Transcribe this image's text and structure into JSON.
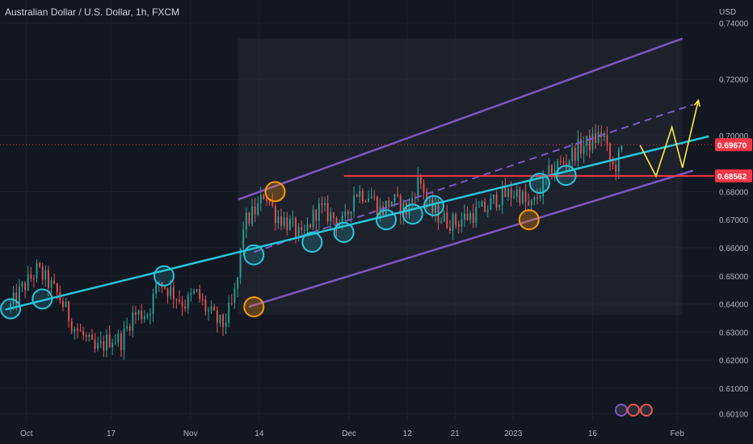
{
  "header": {
    "title": "Australian Dollar / U.S. Dollar, 1h, FXCM",
    "currency": "USD"
  },
  "colors": {
    "background": "#131722",
    "grid": "#1e222d",
    "candle_up": "#26a69a",
    "candle_down": "#ef5350",
    "channel": "#7e57c2",
    "trendline": "#26c6da",
    "resistance": "#f23645",
    "circle_cyan": "#26c6da",
    "circle_orange": "#ff9800",
    "projection": "#ffeb3b"
  },
  "chart_data": {
    "type": "candlestick",
    "instrument": "Australian Dollar / U.S. Dollar",
    "timeframe": "1h",
    "source": "FXCM",
    "ylim": [
      0.5985,
      0.7465
    ],
    "yticks": [
      0.601,
      0.61,
      0.62,
      0.63,
      0.64,
      0.65,
      0.66,
      0.67,
      0.68,
      0.7,
      0.72,
      0.74
    ],
    "ytick_labels": [
      "0.60100",
      "0.61000",
      "0.62000",
      "0.63000",
      "0.64000",
      "0.65000",
      "0.66000",
      "0.67000",
      "0.68000",
      "0.70000",
      "0.72000",
      "0.74000"
    ],
    "xticks": [
      "Oct",
      "17",
      "Nov",
      "14",
      "Dec",
      "12",
      "21",
      "2023",
      "16",
      "Feb"
    ],
    "xtick_dates": [
      "2022-10-01",
      "2022-10-17",
      "2022-11-01",
      "2022-11-14",
      "2022-12-01",
      "2022-12-12",
      "2022-12-21",
      "2023-01-01",
      "2023-01-16",
      "2023-02-01"
    ],
    "close_path": [
      [
        "2022-09-28",
        0.639
      ],
      [
        "2022-09-30",
        0.645
      ],
      [
        "2022-10-03",
        0.652
      ],
      [
        "2022-10-05",
        0.648
      ],
      [
        "2022-10-07",
        0.643
      ],
      [
        "2022-10-10",
        0.632
      ],
      [
        "2022-10-12",
        0.628
      ],
      [
        "2022-10-14",
        0.623
      ],
      [
        "2022-10-17",
        0.628
      ],
      [
        "2022-10-19",
        0.627
      ],
      [
        "2022-10-21",
        0.636
      ],
      [
        "2022-10-24",
        0.637
      ],
      [
        "2022-10-26",
        0.648
      ],
      [
        "2022-10-28",
        0.645
      ],
      [
        "2022-10-31",
        0.64
      ],
      [
        "2022-11-02",
        0.644
      ],
      [
        "2022-11-04",
        0.638
      ],
      [
        "2022-11-07",
        0.632
      ],
      [
        "2022-11-09",
        0.64
      ],
      [
        "2022-11-10",
        0.65
      ],
      [
        "2022-11-11",
        0.668
      ],
      [
        "2022-11-14",
        0.675
      ],
      [
        "2022-11-15",
        0.68
      ],
      [
        "2022-11-17",
        0.672
      ],
      [
        "2022-11-20",
        0.668
      ],
      [
        "2022-11-22",
        0.663
      ],
      [
        "2022-11-25",
        0.674
      ],
      [
        "2022-11-28",
        0.671
      ],
      [
        "2022-11-30",
        0.668
      ],
      [
        "2022-12-02",
        0.68
      ],
      [
        "2022-12-05",
        0.679
      ],
      [
        "2022-12-07",
        0.673
      ],
      [
        "2022-12-09",
        0.677
      ],
      [
        "2022-12-12",
        0.673
      ],
      [
        "2022-12-14",
        0.684
      ],
      [
        "2022-12-15",
        0.682
      ],
      [
        "2022-12-16",
        0.674
      ],
      [
        "2022-12-19",
        0.67
      ],
      [
        "2022-12-21",
        0.669
      ],
      [
        "2022-12-23",
        0.671
      ],
      [
        "2022-12-27",
        0.674
      ],
      [
        "2022-12-29",
        0.678
      ],
      [
        "2023-01-02",
        0.68
      ],
      [
        "2023-01-04",
        0.674
      ],
      [
        "2023-01-05",
        0.676
      ],
      [
        "2023-01-07",
        0.684
      ],
      [
        "2023-01-09",
        0.689
      ],
      [
        "2023-01-11",
        0.691
      ],
      [
        "2023-01-13",
        0.695
      ],
      [
        "2023-01-16",
        0.698
      ],
      [
        "2023-01-18",
        0.701
      ],
      [
        "2023-01-19",
        0.692
      ],
      [
        "2023-01-20",
        0.688
      ],
      [
        "2023-01-22",
        0.6967
      ]
    ],
    "channel_upper": [
      [
        "2022-11-10",
        0.6772
      ],
      [
        "2023-02-02",
        0.7345
      ]
    ],
    "channel_lower": [
      [
        "2022-11-12",
        0.639
      ],
      [
        "2023-02-04",
        0.6875
      ]
    ],
    "channel_mid": [
      [
        "2022-11-13",
        0.6585
      ],
      [
        "2023-02-04",
        0.711
      ]
    ],
    "trendline": [
      [
        "2022-09-27",
        0.638
      ],
      [
        "2023-02-07",
        0.6997
      ]
    ],
    "resistance": {
      "value": 0.68562,
      "start": "2022-11-30"
    },
    "current_price": 0.6967,
    "price_labels": [
      "0.69670",
      "0.68562"
    ],
    "circles": [
      {
        "date": "2022-09-28",
        "value": 0.6383,
        "color": "cyan"
      },
      {
        "date": "2022-10-04",
        "value": 0.6418,
        "color": "cyan"
      },
      {
        "date": "2022-10-27",
        "value": 0.65,
        "color": "cyan"
      },
      {
        "date": "2022-11-13",
        "value": 0.6575,
        "color": "cyan"
      },
      {
        "date": "2022-11-13",
        "value": 0.639,
        "color": "orange"
      },
      {
        "date": "2022-11-17",
        "value": 0.68,
        "color": "orange"
      },
      {
        "date": "2022-11-24",
        "value": 0.662,
        "color": "cyan"
      },
      {
        "date": "2022-11-30",
        "value": 0.6655,
        "color": "cyan"
      },
      {
        "date": "2022-12-08",
        "value": 0.67,
        "color": "cyan"
      },
      {
        "date": "2022-12-13",
        "value": 0.672,
        "color": "cyan"
      },
      {
        "date": "2022-12-17",
        "value": 0.675,
        "color": "cyan"
      },
      {
        "date": "2023-01-04",
        "value": 0.67,
        "color": "orange"
      },
      {
        "date": "2023-01-06",
        "value": 0.683,
        "color": "cyan"
      },
      {
        "date": "2023-01-11",
        "value": 0.6858,
        "color": "cyan"
      }
    ],
    "projection": [
      [
        "2023-01-25",
        0.6965
      ],
      [
        "2023-01-28",
        0.6855
      ],
      [
        "2023-01-31",
        0.703
      ],
      [
        "2023-02-02",
        0.6885
      ],
      [
        "2023-02-05",
        0.7125
      ]
    ],
    "grid": true
  }
}
